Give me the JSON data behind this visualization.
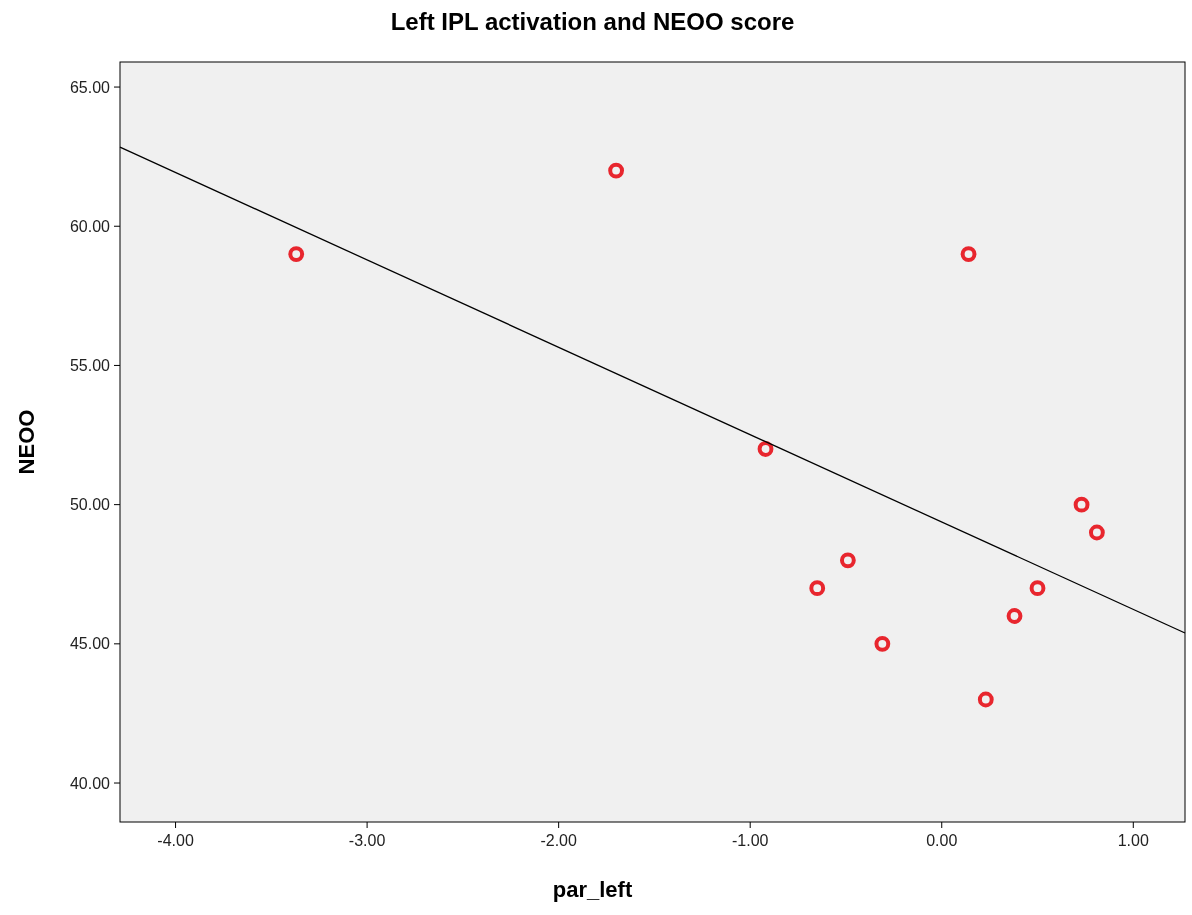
{
  "chart_data": {
    "type": "scatter",
    "title": "Left IPL activation and NEOO score",
    "xlabel": "par_left",
    "ylabel": "NEOO",
    "xlim": [
      -4.29,
      1.27
    ],
    "ylim": [
      38.6,
      65.9
    ],
    "xticks": [
      {
        "value": -4,
        "label": "-4.00"
      },
      {
        "value": -3,
        "label": "-3.00"
      },
      {
        "value": -2,
        "label": "-2.00"
      },
      {
        "value": -1,
        "label": "-1.00"
      },
      {
        "value": 0,
        "label": "0.00"
      },
      {
        "value": 1,
        "label": "1.00"
      }
    ],
    "yticks": [
      {
        "value": 40,
        "label": "40.00"
      },
      {
        "value": 45,
        "label": "45.00"
      },
      {
        "value": 50,
        "label": "50.00"
      },
      {
        "value": 55,
        "label": "55.00"
      },
      {
        "value": 60,
        "label": "60.00"
      },
      {
        "value": 65,
        "label": "65.00"
      }
    ],
    "grid": false,
    "series": [
      {
        "color": "#e8262e",
        "marker": "circle",
        "x": [
          -3.37,
          -1.7,
          0.14,
          -0.92,
          0.73,
          0.81,
          0.5,
          0.38,
          0.23,
          -0.31,
          -0.65,
          -0.49
        ],
        "values": [
          59,
          62,
          59,
          52,
          50,
          49,
          47,
          46,
          43,
          45,
          47,
          48
        ]
      },
      {
        "type": "line",
        "color": "#000000",
        "x": [
          -4.29,
          1.27
        ],
        "values": [
          62.84,
          45.39
        ]
      }
    ]
  }
}
